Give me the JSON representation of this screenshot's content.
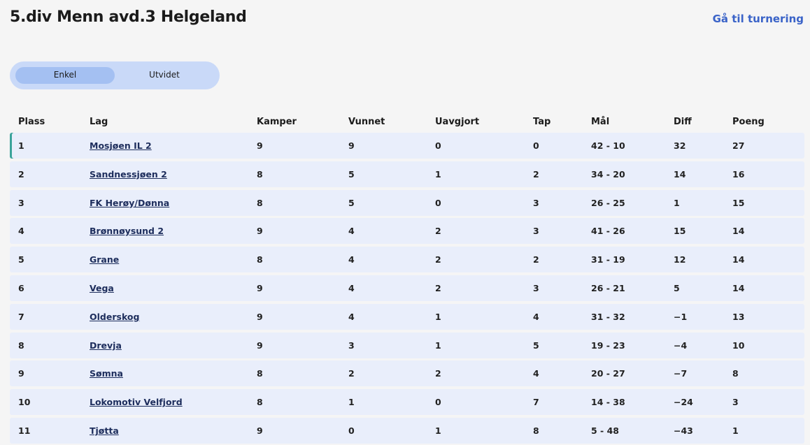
{
  "header": {
    "title": "5.div Menn avd.3 Helgeland",
    "link": "Gå til turnering"
  },
  "toggle": {
    "options": [
      "Enkel",
      "Utvidet"
    ]
  },
  "table": {
    "columns": [
      "Plass",
      "Lag",
      "Kamper",
      "Vunnet",
      "Uavgjort",
      "Tap",
      "Mål",
      "Diff",
      "Poeng"
    ],
    "rows": [
      [
        "1",
        "Mosjøen IL 2",
        "9",
        "9",
        "0",
        "0",
        "42 - 10",
        "32",
        "27"
      ],
      [
        "2",
        "Sandnessjøen 2",
        "8",
        "5",
        "1",
        "2",
        "34 - 20",
        "14",
        "16"
      ],
      [
        "3",
        "FK Herøy/Dønna",
        "8",
        "5",
        "0",
        "3",
        "26 - 25",
        "1",
        "15"
      ],
      [
        "4",
        "Brønnøysund 2",
        "9",
        "4",
        "2",
        "3",
        "41 - 26",
        "15",
        "14"
      ],
      [
        "5",
        "Grane",
        "8",
        "4",
        "2",
        "2",
        "31 - 19",
        "12",
        "14"
      ],
      [
        "6",
        "Vega",
        "9",
        "4",
        "2",
        "3",
        "26 - 21",
        "5",
        "14"
      ],
      [
        "7",
        "Olderskog",
        "9",
        "4",
        "1",
        "4",
        "31 - 32",
        "−1",
        "13"
      ],
      [
        "8",
        "Drevja",
        "9",
        "3",
        "1",
        "5",
        "19 - 23",
        "−4",
        "10"
      ],
      [
        "9",
        "Sømna",
        "8",
        "2",
        "2",
        "4",
        "20 - 27",
        "−7",
        "8"
      ],
      [
        "10",
        "Lokomotiv Velfjord",
        "8",
        "1",
        "0",
        "7",
        "14 - 38",
        "−24",
        "3"
      ],
      [
        "11",
        "Tjøtta",
        "9",
        "0",
        "1",
        "8",
        "5 - 48",
        "−43",
        "1"
      ]
    ]
  }
}
